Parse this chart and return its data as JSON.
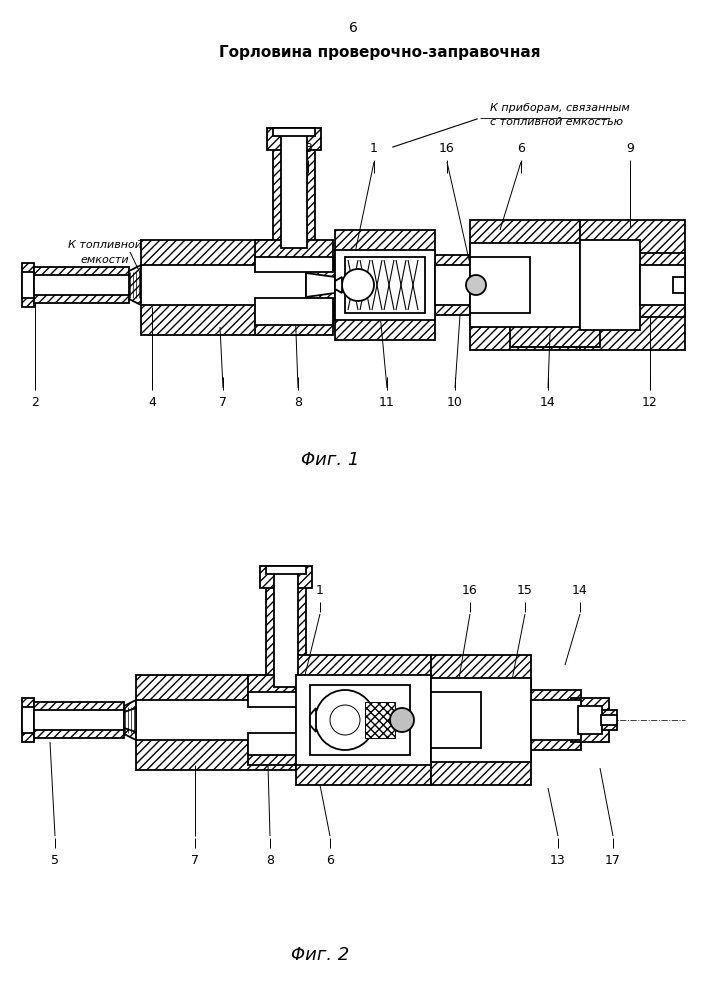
{
  "title": "Горловина проверочно-заправочная",
  "page_number": "6",
  "fig1_caption": "Φиг. 1",
  "fig2_caption": "Φиг. 2",
  "annotation_top_line1": "К приборам, связанным",
  "annotation_top_line2": "с топливной емкостью",
  "annotation_left_line1": "К топливной",
  "annotation_left_line2": "емкости",
  "bg_color": "#ffffff",
  "line_color": "#000000"
}
